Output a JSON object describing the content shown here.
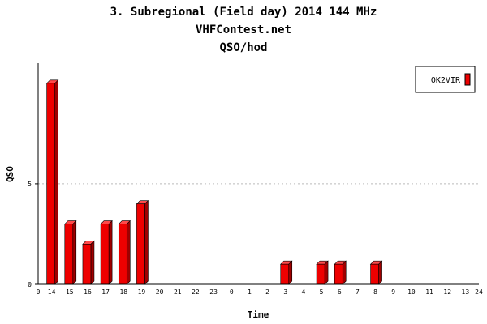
{
  "chart_data": {
    "type": "bar",
    "title": "3. Subregional (Field day) 2014 144 MHz",
    "subtitle": "VHFContest.net",
    "subtitle2": "QSO/hod",
    "xlabel": "Time",
    "ylabel": "QSO",
    "x_tick_labels": [
      "0",
      "14",
      "15",
      "16",
      "17",
      "18",
      "19",
      "20",
      "21",
      "22",
      "23",
      "0",
      "1",
      "2",
      "3",
      "4",
      "5",
      "6",
      "7",
      "8",
      "9",
      "10",
      "11",
      "12",
      "13",
      "24"
    ],
    "categories": [
      "14",
      "15",
      "16",
      "17",
      "18",
      "19",
      "20",
      "21",
      "22",
      "23",
      "0",
      "1",
      "2",
      "3",
      "4",
      "5",
      "6",
      "7",
      "8",
      "9",
      "10",
      "11",
      "12",
      "13"
    ],
    "series": [
      {
        "name": "OK2VIR",
        "color": "#ee0000",
        "values": [
          10,
          3,
          2,
          3,
          3,
          4,
          0,
          0,
          0,
          0,
          0,
          0,
          0,
          1,
          0,
          1,
          1,
          0,
          1,
          0,
          0,
          0,
          0,
          0
        ]
      }
    ],
    "y_ticks": [
      0,
      5
    ],
    "ylim": [
      0,
      11
    ],
    "grid": "horizontal dashed",
    "legend": "top-right"
  }
}
